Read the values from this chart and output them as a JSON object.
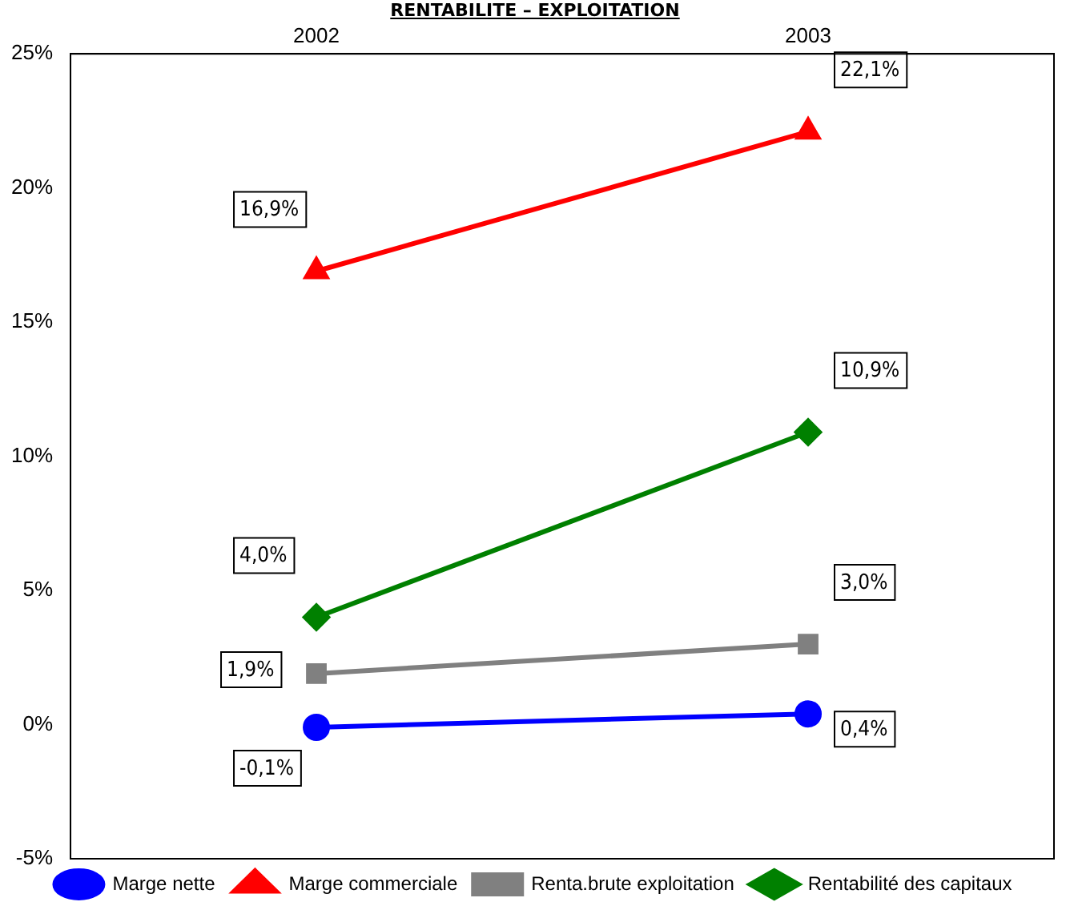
{
  "chart_data": {
    "type": "line",
    "title": "RENTABILITE – EXPLOITATION",
    "categories": [
      "2002",
      "2003"
    ],
    "series": [
      {
        "name": "Marge nette",
        "color": "#0000ff",
        "marker": "circle",
        "values": [
          -0.1,
          0.4
        ],
        "value_labels": [
          "-0,1%",
          "0,4%"
        ]
      },
      {
        "name": "Marge commerciale",
        "color": "#ff0000",
        "marker": "triangle",
        "values": [
          16.9,
          22.1
        ],
        "value_labels": [
          "16,9%",
          "22,1%"
        ]
      },
      {
        "name": "Renta.brute exploitation",
        "color": "#808080",
        "marker": "square",
        "values": [
          1.9,
          3.0
        ],
        "value_labels": [
          "1,9%",
          "3,0%"
        ]
      },
      {
        "name": "Rentabilité des capitaux",
        "color": "#008000",
        "marker": "diamond",
        "values": [
          4.0,
          10.9
        ],
        "value_labels": [
          "4,0%",
          "10,9%"
        ]
      }
    ],
    "ylim": [
      -5,
      25
    ],
    "yticks": [
      {
        "value": -5,
        "label": "-5%"
      },
      {
        "value": 0,
        "label": "0%"
      },
      {
        "value": 5,
        "label": "5%"
      },
      {
        "value": 10,
        "label": "10%"
      },
      {
        "value": 15,
        "label": "15%"
      },
      {
        "value": 20,
        "label": "20%"
      },
      {
        "value": 25,
        "label": "25%"
      }
    ],
    "legend": "bottom",
    "line_style": "solid"
  }
}
